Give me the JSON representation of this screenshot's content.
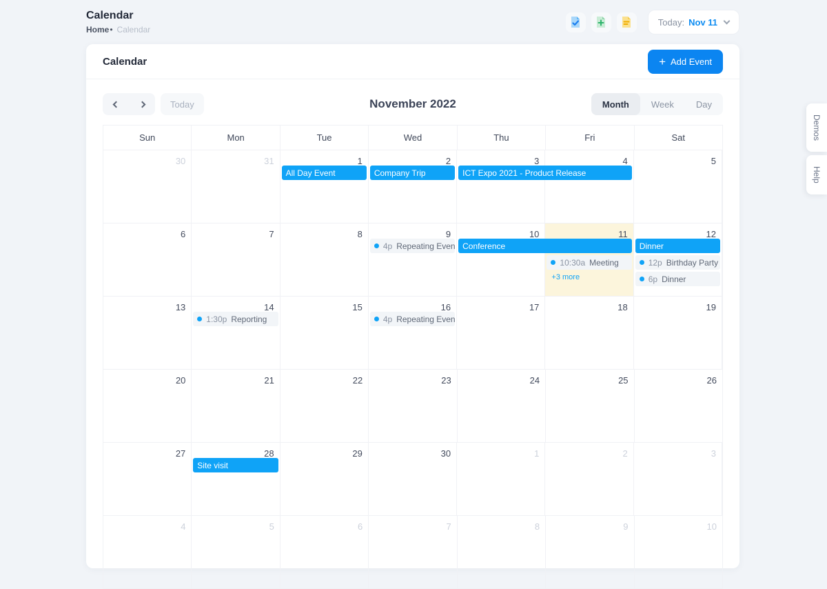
{
  "page": {
    "title": "Calendar",
    "breadcrumb": {
      "home": "Home",
      "separator": "•",
      "current": "Calendar"
    }
  },
  "header_actions": {
    "icons": [
      {
        "name": "file-check-icon",
        "page_color": "#a9d7fa",
        "glyph_color": "#1b7ff0"
      },
      {
        "name": "file-plus-icon",
        "page_color": "#c9ecd6",
        "glyph_color": "#2eb46c"
      },
      {
        "name": "file-text-icon",
        "page_color": "#fbe18f",
        "glyph_color": "#f0ad00"
      }
    ],
    "today_label": "Today:",
    "today_value": "Nov 11"
  },
  "card": {
    "title": "Calendar",
    "add_event_label": "Add Event",
    "plus_glyph": "+"
  },
  "toolbar": {
    "today_button": "Today",
    "title": "November 2022",
    "views": {
      "month": "Month",
      "week": "Week",
      "day": "Day"
    },
    "active_view": "Month"
  },
  "calendar": {
    "day_headers": [
      "Sun",
      "Mon",
      "Tue",
      "Wed",
      "Thu",
      "Fri",
      "Sat"
    ],
    "weeks": [
      {
        "days": [
          {
            "n": 30,
            "muted": true
          },
          {
            "n": 31,
            "muted": true
          },
          {
            "n": 1
          },
          {
            "n": 2
          },
          {
            "n": 3
          },
          {
            "n": 4
          },
          {
            "n": 5
          }
        ],
        "events": [
          {
            "type": "block",
            "label": "All Day Event",
            "col": 2,
            "span": 1,
            "row": 0
          },
          {
            "type": "block",
            "label": "Company Trip",
            "col": 3,
            "span": 1,
            "row": 0
          },
          {
            "type": "block",
            "label": "ICT Expo 2021 - Product Release",
            "col": 4,
            "span": 2,
            "row": 0
          }
        ]
      },
      {
        "days": [
          {
            "n": 6
          },
          {
            "n": 7
          },
          {
            "n": 8
          },
          {
            "n": 9
          },
          {
            "n": 10
          },
          {
            "n": 11,
            "today": true
          },
          {
            "n": 12
          }
        ],
        "events": [
          {
            "type": "dot",
            "time": "4p",
            "label": "Repeating Event",
            "col": 3,
            "row": 0
          },
          {
            "type": "block",
            "label": "Conference",
            "col": 4,
            "span": 2,
            "row": 0
          },
          {
            "type": "dot",
            "time": "10:30a",
            "label": "Meeting",
            "col": 5,
            "row": 1
          },
          {
            "type": "more",
            "label": "+3 more",
            "col": 5,
            "row": 2
          },
          {
            "type": "block",
            "label": "Dinner",
            "col": 6,
            "span": 1,
            "row": 0
          },
          {
            "type": "dot",
            "time": "12p",
            "label": "Birthday Party",
            "col": 6,
            "row": 1
          },
          {
            "type": "dot",
            "time": "6p",
            "label": "Dinner",
            "col": 6,
            "row": 2
          }
        ]
      },
      {
        "days": [
          {
            "n": 13
          },
          {
            "n": 14
          },
          {
            "n": 15
          },
          {
            "n": 16
          },
          {
            "n": 17
          },
          {
            "n": 18
          },
          {
            "n": 19
          }
        ],
        "events": [
          {
            "type": "dot",
            "time": "1:30p",
            "label": "Reporting",
            "col": 1,
            "row": 0
          },
          {
            "type": "dot",
            "time": "4p",
            "label": "Repeating Event",
            "col": 3,
            "row": 0
          }
        ]
      },
      {
        "days": [
          {
            "n": 20
          },
          {
            "n": 21
          },
          {
            "n": 22
          },
          {
            "n": 23
          },
          {
            "n": 24
          },
          {
            "n": 25
          },
          {
            "n": 26
          }
        ],
        "events": []
      },
      {
        "days": [
          {
            "n": 27
          },
          {
            "n": 28
          },
          {
            "n": 29
          },
          {
            "n": 30
          },
          {
            "n": 1,
            "muted": true
          },
          {
            "n": 2,
            "muted": true
          },
          {
            "n": 3,
            "muted": true
          }
        ],
        "events": [
          {
            "type": "block",
            "label": "Site visit",
            "col": 1,
            "span": 1,
            "row": 0
          }
        ]
      },
      {
        "days": [
          {
            "n": 4,
            "muted": true
          },
          {
            "n": 5,
            "muted": true
          },
          {
            "n": 6,
            "muted": true
          },
          {
            "n": 7,
            "muted": true
          },
          {
            "n": 8,
            "muted": true
          },
          {
            "n": 9,
            "muted": true
          },
          {
            "n": 10,
            "muted": true
          }
        ],
        "events": []
      }
    ]
  },
  "side_tabs": [
    {
      "label": "Demos"
    },
    {
      "label": "Help"
    }
  ],
  "colors": {
    "accent_blue": "#0b85f1",
    "event_blue": "#0fa3f7",
    "today_cell_bg": "#fcf5dc",
    "pill_bg": "#f2f5f8",
    "page_bg": "#f1f4f8"
  }
}
